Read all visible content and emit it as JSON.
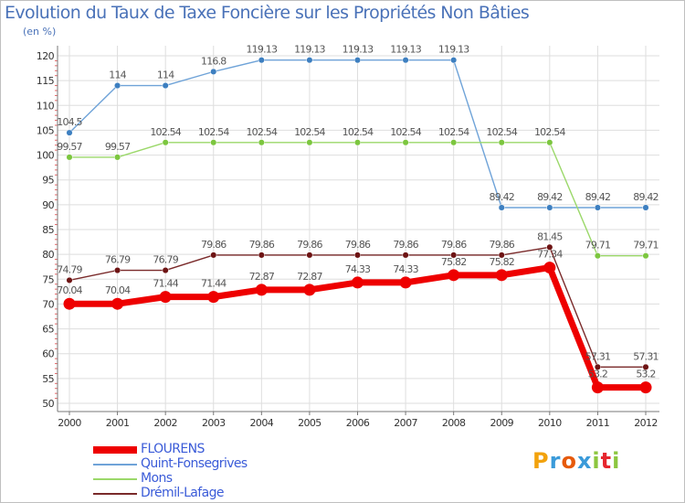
{
  "title": "Evolution du Taux de Taxe Foncière sur les Propriétés Non Bâties",
  "unit": "(en %)",
  "logo": {
    "text": "Proxiti",
    "colors": [
      "#f2a20c",
      "#3a9ad9",
      "#e65a0c",
      "#3a9ad9",
      "#8cc63f",
      "#e6262e",
      "#8cc63f"
    ]
  },
  "chart_data": {
    "type": "line",
    "title": "Evolution du Taux de Taxe Foncière sur les Propriétés Non Bâties",
    "ylabel": "(en %)",
    "xlabel": "",
    "ylim": [
      50,
      120
    ],
    "yticks": [
      50,
      55,
      60,
      65,
      70,
      75,
      80,
      85,
      90,
      95,
      100,
      105,
      110,
      115,
      120
    ],
    "categories": [
      "2000",
      "2001",
      "2002",
      "2003",
      "2004",
      "2005",
      "2006",
      "2007",
      "2008",
      "2009",
      "2010",
      "2011",
      "2012"
    ],
    "series": [
      {
        "name": "FLOURENS",
        "color": "#ee0000",
        "marker": "#ee0000",
        "values": [
          70.04,
          70.04,
          71.44,
          71.44,
          72.87,
          72.87,
          74.33,
          74.33,
          75.82,
          75.82,
          77.34,
          53.2,
          53.2
        ],
        "labels": [
          "70.04",
          "70.04",
          "71.44",
          "71.44",
          "72.87",
          "72.87",
          "74.33",
          "74.33",
          "75.82",
          "75.82",
          "77.34",
          "53.2",
          "53.2"
        ]
      },
      {
        "name": "Quint-Fonsegrives",
        "color": "#6fa3d8",
        "marker": "#3d7fc0",
        "values": [
          104.5,
          114,
          114,
          116.8,
          119.13,
          119.13,
          119.13,
          119.13,
          119.13,
          89.42,
          89.42,
          89.42,
          89.42
        ],
        "labels": [
          "104.5",
          "114",
          "114",
          "116.8",
          "119.13",
          "119.13",
          "119.13",
          "119.13",
          "119.13",
          "89.42",
          "89.42",
          "89.42",
          "89.42"
        ]
      },
      {
        "name": "Mons",
        "color": "#9bd86a",
        "marker": "#7cc63f",
        "values": [
          99.57,
          99.57,
          102.54,
          102.54,
          102.54,
          102.54,
          102.54,
          102.54,
          102.54,
          102.54,
          102.54,
          79.71,
          79.71
        ],
        "labels": [
          "99.57",
          "99.57",
          "102.54",
          "102.54",
          "102.54",
          "102.54",
          "102.54",
          "102.54",
          "102.54",
          "102.54",
          "102.54",
          "79.71",
          "79.71"
        ]
      },
      {
        "name": "Drémil-Lafage",
        "color": "#7a2a2a",
        "marker": "#6e1414",
        "values": [
          74.79,
          76.79,
          76.79,
          79.86,
          79.86,
          79.86,
          79.86,
          79.86,
          79.86,
          79.86,
          81.45,
          57.31,
          57.31
        ],
        "labels": [
          "74.79",
          "76.79",
          "76.79",
          "79.86",
          "79.86",
          "79.86",
          "79.86",
          "79.86",
          "79.86",
          "79.86",
          "81.45",
          "57.31",
          "57.31"
        ]
      }
    ],
    "grid": true,
    "legend_position": "bottom-left"
  }
}
